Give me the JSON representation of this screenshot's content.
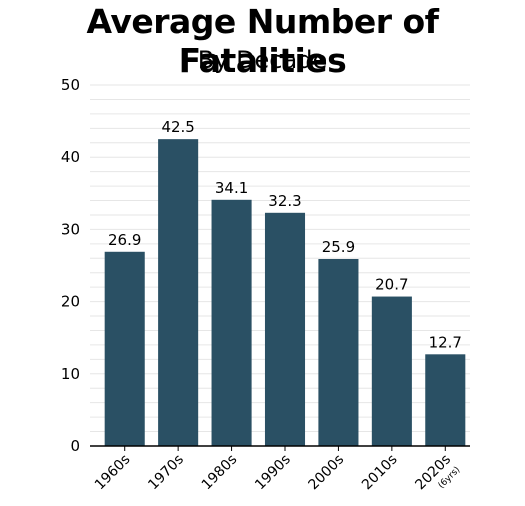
{
  "chart_data": {
    "type": "bar",
    "title": "Average Number of Fatalities",
    "subtitle": "By Decade",
    "categories": [
      "1960s",
      "1970s",
      "1980s",
      "1990s",
      "2000s",
      "2010s",
      "2020s"
    ],
    "category_notes": [
      "",
      "",
      "",
      "",
      "",
      "",
      "(6yrs)"
    ],
    "values": [
      26.9,
      42.5,
      34.1,
      32.3,
      25.9,
      20.7,
      12.7
    ],
    "data_labels": [
      "26.9",
      "42.5",
      "34.1",
      "32.3",
      "25.9",
      "20.7",
      "12.7"
    ],
    "yticks": [
      "0",
      "10",
      "20",
      "30",
      "40",
      "50"
    ],
    "ylim": [
      0,
      50
    ],
    "grid": true,
    "bar_color": "#2a5064",
    "grid_color": "#e6e6e6"
  }
}
